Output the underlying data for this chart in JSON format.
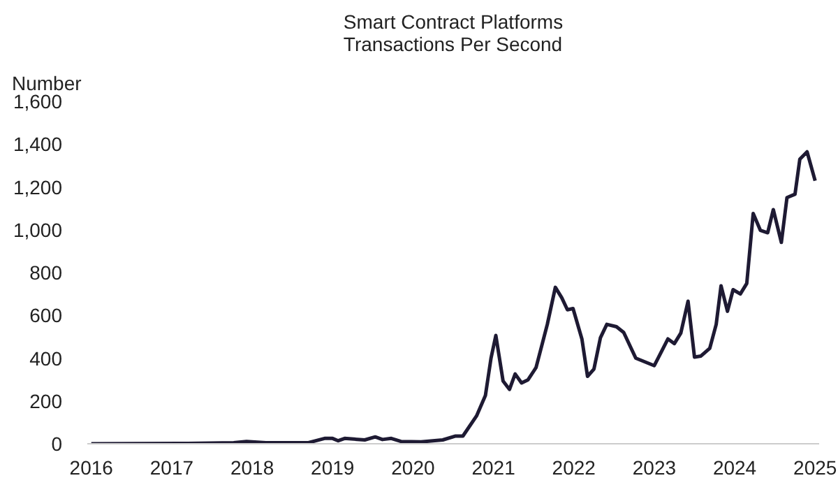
{
  "chart_data": {
    "type": "line",
    "title": "Smart Contract Platforms\nTransactions Per Second",
    "ylabel": "Number",
    "x": [
      2016.0,
      2017.2,
      2017.77,
      2017.93,
      2018.17,
      2018.7,
      2018.9,
      2019.0,
      2019.07,
      2019.15,
      2019.4,
      2019.53,
      2019.62,
      2019.73,
      2019.85,
      2020.1,
      2020.37,
      2020.53,
      2020.62,
      2020.79,
      2020.9,
      2020.97,
      2021.03,
      2021.12,
      2021.2,
      2021.27,
      2021.35,
      2021.43,
      2021.53,
      2021.67,
      2021.77,
      2021.85,
      2021.92,
      2021.99,
      2022.1,
      2022.17,
      2022.25,
      2022.33,
      2022.41,
      2022.53,
      2022.62,
      2022.77,
      2023.0,
      2023.17,
      2023.25,
      2023.33,
      2023.42,
      2023.5,
      2023.58,
      2023.69,
      2023.77,
      2023.83,
      2023.91,
      2023.98,
      2024.07,
      2024.15,
      2024.23,
      2024.32,
      2024.41,
      2024.48,
      2024.58,
      2024.65,
      2024.75,
      2024.81,
      2024.9,
      2025.0
    ],
    "series": [
      {
        "color": "#1e1a33",
        "values": [
          0,
          2,
          5,
          11,
          5,
          5,
          25,
          25,
          14,
          25,
          18,
          32,
          20,
          25,
          11,
          9,
          18,
          36,
          36,
          130,
          225,
          400,
          506,
          293,
          254,
          326,
          284,
          299,
          356,
          558,
          731,
          682,
          626,
          632,
          490,
          315,
          349,
          495,
          558,
          547,
          520,
          400,
          365,
          490,
          468,
          517,
          666,
          405,
          410,
          446,
          558,
          738,
          619,
          720,
          700,
          749,
          1076,
          997,
          986,
          1094,
          941,
          1150,
          1166,
          1330,
          1364,
          1229
        ]
      }
    ],
    "xlim": [
      2015.95,
      2025.05
    ],
    "xticks": [
      2016,
      2017,
      2018,
      2019,
      2020,
      2021,
      2022,
      2023,
      2024,
      2025
    ],
    "ylim": [
      0,
      1600
    ],
    "yticks": [
      {
        "value": 0,
        "label": "0"
      },
      {
        "value": 200,
        "label": "200"
      },
      {
        "value": 400,
        "label": "400"
      },
      {
        "value": 600,
        "label": "600"
      },
      {
        "value": 800,
        "label": "800"
      },
      {
        "value": 1000,
        "label": "1,000"
      },
      {
        "value": 1200,
        "label": "1,200"
      },
      {
        "value": 1400,
        "label": "1,400"
      },
      {
        "value": 1600,
        "label": "1,600"
      }
    ],
    "grid": false,
    "marker": "none",
    "line_style": "solid"
  }
}
